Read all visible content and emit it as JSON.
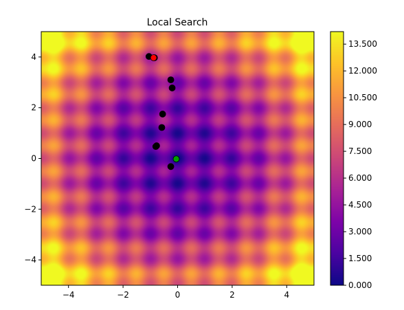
{
  "chart_data": {
    "type": "heatmap",
    "title": "Local Search",
    "xlabel": "",
    "ylabel": "",
    "xlim": [
      -5,
      5
    ],
    "ylim": [
      -5,
      5
    ],
    "x_ticks": [
      -4,
      -2,
      0,
      2,
      4
    ],
    "y_ticks": [
      -4,
      -2,
      0,
      2,
      4
    ],
    "x_tick_labels": [
      "−4",
      "−2",
      "0",
      "2",
      "4"
    ],
    "y_tick_labels": [
      "−4",
      "−2",
      "0",
      "2",
      "4"
    ],
    "colormap": "plasma",
    "surface": "Rastrigin-like: 10·(cos terms) + x² + y²",
    "colorbar": {
      "range": [
        0,
        14.2
      ],
      "ticks": [
        0.0,
        1.5,
        3.0,
        4.5,
        6.0,
        7.5,
        9.0,
        10.5,
        12.0,
        13.5
      ],
      "tick_labels": [
        "0.000",
        "1.500",
        "3.000",
        "4.500",
        "6.000",
        "7.500",
        "9.000",
        "10.500",
        "12.000",
        "13.500"
      ]
    },
    "series": [
      {
        "role": "search path",
        "color": "#000000",
        "points": [
          [
            -1.05,
            4.02
          ],
          [
            -0.85,
            3.97
          ],
          [
            -0.25,
            3.1
          ],
          [
            -0.2,
            2.78
          ],
          [
            -0.55,
            1.75
          ],
          [
            -0.58,
            1.22
          ],
          [
            -0.8,
            0.47
          ],
          [
            -0.77,
            0.5
          ],
          [
            -0.25,
            -0.32
          ]
        ]
      },
      {
        "role": "start point",
        "color": "#ff0000",
        "points": [
          [
            -0.88,
            3.97
          ]
        ]
      },
      {
        "role": "best point",
        "color": "#00a000",
        "points": [
          [
            -0.05,
            -0.02
          ]
        ]
      }
    ]
  }
}
